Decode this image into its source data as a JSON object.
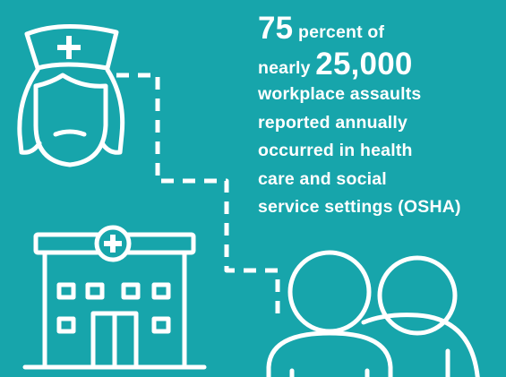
{
  "infographic": {
    "stat_number": "75",
    "stat_unit": "percent of",
    "lead_in": "nearly",
    "count": "25,000",
    "description_lines": [
      "workplace assaults",
      "reported annually",
      "occurred in health",
      "care and social",
      "service settings (OSHA)"
    ]
  },
  "colors": {
    "background": "#17a5ab",
    "foreground": "#ffffff"
  },
  "icons": [
    "nurse-icon",
    "hospital-icon",
    "people-icon"
  ]
}
